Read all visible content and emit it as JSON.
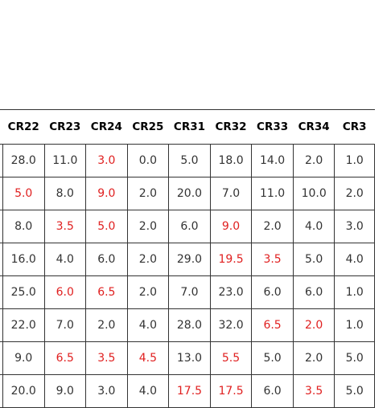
{
  "table": {
    "columns": [
      "CR22",
      "CR23",
      "CR24",
      "CR25",
      "CR31",
      "CR32",
      "CR33",
      "CR34",
      "CR3"
    ],
    "rows": [
      [
        {
          "v": "28.0"
        },
        {
          "v": "11.0"
        },
        {
          "v": "3.0",
          "red": true
        },
        {
          "v": "0.0"
        },
        {
          "v": "5.0"
        },
        {
          "v": "18.0"
        },
        {
          "v": "14.0"
        },
        {
          "v": "2.0"
        },
        {
          "v": "1.0"
        }
      ],
      [
        {
          "v": "5.0",
          "red": true
        },
        {
          "v": "8.0"
        },
        {
          "v": "9.0",
          "red": true
        },
        {
          "v": "2.0"
        },
        {
          "v": "20.0"
        },
        {
          "v": "7.0"
        },
        {
          "v": "11.0"
        },
        {
          "v": "10.0"
        },
        {
          "v": "2.0"
        }
      ],
      [
        {
          "v": "8.0"
        },
        {
          "v": "3.5",
          "red": true
        },
        {
          "v": "5.0",
          "red": true
        },
        {
          "v": "2.0"
        },
        {
          "v": "6.0"
        },
        {
          "v": "9.0",
          "red": true
        },
        {
          "v": "2.0"
        },
        {
          "v": "4.0"
        },
        {
          "v": "3.0"
        }
      ],
      [
        {
          "v": "16.0"
        },
        {
          "v": "4.0"
        },
        {
          "v": "6.0"
        },
        {
          "v": "2.0"
        },
        {
          "v": "29.0"
        },
        {
          "v": "19.5",
          "red": true
        },
        {
          "v": "3.5",
          "red": true
        },
        {
          "v": "5.0"
        },
        {
          "v": "4.0"
        }
      ],
      [
        {
          "v": "25.0"
        },
        {
          "v": "6.0",
          "red": true
        },
        {
          "v": "6.5",
          "red": true
        },
        {
          "v": "2.0"
        },
        {
          "v": "7.0"
        },
        {
          "v": "23.0"
        },
        {
          "v": "6.0"
        },
        {
          "v": "6.0"
        },
        {
          "v": "1.0"
        }
      ],
      [
        {
          "v": "22.0"
        },
        {
          "v": "7.0"
        },
        {
          "v": "2.0"
        },
        {
          "v": "4.0"
        },
        {
          "v": "28.0"
        },
        {
          "v": "32.0"
        },
        {
          "v": "6.5",
          "red": true
        },
        {
          "v": "2.0",
          "red": true
        },
        {
          "v": "1.0"
        }
      ],
      [
        {
          "v": "9.0"
        },
        {
          "v": "6.5",
          "red": true
        },
        {
          "v": "3.5",
          "red": true
        },
        {
          "v": "4.5",
          "red": true
        },
        {
          "v": "13.0"
        },
        {
          "v": "5.5",
          "red": true
        },
        {
          "v": "5.0"
        },
        {
          "v": "2.0"
        },
        {
          "v": "5.0"
        }
      ],
      [
        {
          "v": "20.0"
        },
        {
          "v": "9.0"
        },
        {
          "v": "3.0"
        },
        {
          "v": "4.0"
        },
        {
          "v": "17.5",
          "red": true
        },
        {
          "v": "17.5",
          "red": true
        },
        {
          "v": "6.0"
        },
        {
          "v": "3.5",
          "red": true
        },
        {
          "v": "5.0"
        }
      ]
    ]
  },
  "colors": {
    "text": "#333333",
    "header_text": "#000000",
    "highlight": "#e02020",
    "border": "#333333",
    "background": "#ffffff"
  }
}
